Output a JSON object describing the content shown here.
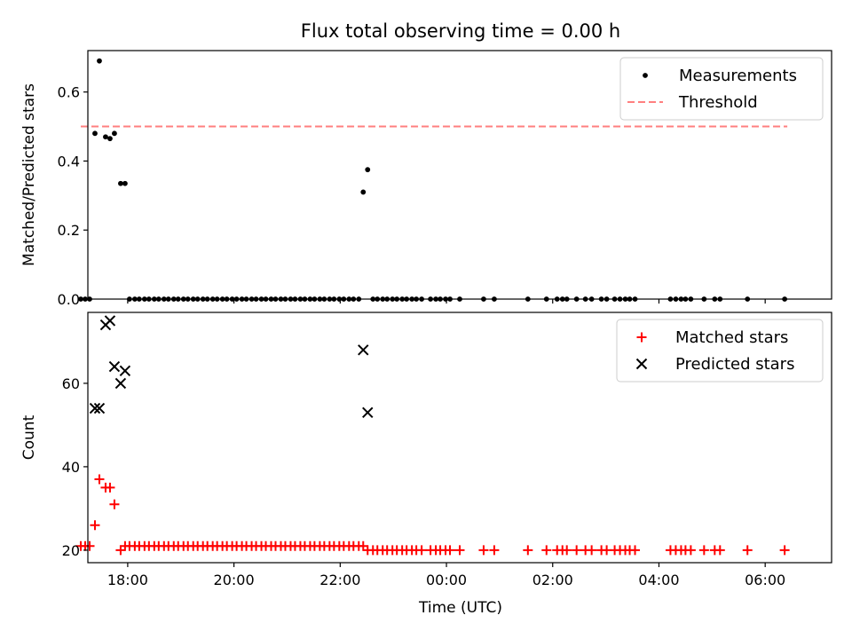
{
  "chart_data": {
    "type": "scatter",
    "title": "Flux total observing time = 0.00 h",
    "xlabel": "Time (UTC)",
    "x_ticks": [
      "18:00",
      "20:00",
      "22:00",
      "00:00",
      "02:00",
      "04:00",
      "06:00"
    ],
    "x_range": [
      "17:15",
      "07:15"
    ],
    "panels": [
      {
        "ylabel": "Matched/Predicted stars",
        "ylim": [
          0,
          0.72
        ],
        "y_ticks": [
          "0.0",
          "0.2",
          "0.4",
          "0.6"
        ],
        "legend": {
          "position": "upper right"
        },
        "series": [
          {
            "name": "Measurements",
            "kind": "points",
            "color": "#000000",
            "points": [
              [
                "17:07",
                0.0
              ],
              [
                "17:12",
                0.0
              ],
              [
                "17:17",
                0.0
              ],
              [
                "17:23",
                0.48
              ],
              [
                "17:28",
                0.69
              ],
              [
                "17:35",
                0.47
              ],
              [
                "17:40",
                0.465
              ],
              [
                "17:45",
                0.48
              ],
              [
                "17:52",
                0.335
              ],
              [
                "17:57",
                0.335
              ],
              [
                "18:02",
                0.0
              ],
              [
                "18:08",
                0.0
              ],
              [
                "18:13",
                0.0
              ],
              [
                "18:19",
                0.0
              ],
              [
                "18:24",
                0.0
              ],
              [
                "18:30",
                0.0
              ],
              [
                "18:35",
                0.0
              ],
              [
                "18:41",
                0.0
              ],
              [
                "18:46",
                0.0
              ],
              [
                "18:52",
                0.0
              ],
              [
                "18:57",
                0.0
              ],
              [
                "19:03",
                0.0
              ],
              [
                "19:08",
                0.0
              ],
              [
                "19:14",
                0.0
              ],
              [
                "19:19",
                0.0
              ],
              [
                "19:25",
                0.0
              ],
              [
                "19:30",
                0.0
              ],
              [
                "19:36",
                0.0
              ],
              [
                "19:41",
                0.0
              ],
              [
                "19:47",
                0.0
              ],
              [
                "19:52",
                0.0
              ],
              [
                "19:58",
                0.0
              ],
              [
                "20:03",
                0.0
              ],
              [
                "20:09",
                0.0
              ],
              [
                "20:14",
                0.0
              ],
              [
                "20:20",
                0.0
              ],
              [
                "20:25",
                0.0
              ],
              [
                "20:31",
                0.0
              ],
              [
                "20:36",
                0.0
              ],
              [
                "20:42",
                0.0
              ],
              [
                "20:47",
                0.0
              ],
              [
                "20:53",
                0.0
              ],
              [
                "20:58",
                0.0
              ],
              [
                "21:04",
                0.0
              ],
              [
                "21:09",
                0.0
              ],
              [
                "21:15",
                0.0
              ],
              [
                "21:20",
                0.0
              ],
              [
                "21:26",
                0.0
              ],
              [
                "21:31",
                0.0
              ],
              [
                "21:37",
                0.0
              ],
              [
                "21:42",
                0.0
              ],
              [
                "21:48",
                0.0
              ],
              [
                "21:53",
                0.0
              ],
              [
                "21:59",
                0.0
              ],
              [
                "22:04",
                0.0
              ],
              [
                "22:10",
                0.0
              ],
              [
                "22:15",
                0.0
              ],
              [
                "22:21",
                0.0
              ],
              [
                "22:26",
                0.31
              ],
              [
                "22:31",
                0.375
              ],
              [
                "22:37",
                0.0
              ],
              [
                "22:42",
                0.0
              ],
              [
                "22:48",
                0.0
              ],
              [
                "22:53",
                0.0
              ],
              [
                "22:59",
                0.0
              ],
              [
                "23:04",
                0.0
              ],
              [
                "23:10",
                0.0
              ],
              [
                "23:15",
                0.0
              ],
              [
                "23:21",
                0.0
              ],
              [
                "23:26",
                0.0
              ],
              [
                "23:32",
                0.0
              ],
              [
                "23:42",
                0.0
              ],
              [
                "23:48",
                0.0
              ],
              [
                "23:53",
                0.0
              ],
              [
                "23:59",
                0.0
              ],
              [
                "00:04",
                0.0
              ],
              [
                "00:15",
                0.0
              ],
              [
                "00:42",
                0.0
              ],
              [
                "00:54",
                0.0
              ],
              [
                "01:32",
                0.0
              ],
              [
                "01:53",
                0.0
              ],
              [
                "02:05",
                0.0
              ],
              [
                "02:11",
                0.0
              ],
              [
                "02:16",
                0.0
              ],
              [
                "02:27",
                0.0
              ],
              [
                "02:37",
                0.0
              ],
              [
                "02:44",
                0.0
              ],
              [
                "02:55",
                0.0
              ],
              [
                "03:01",
                0.0
              ],
              [
                "03:10",
                0.0
              ],
              [
                "03:16",
                0.0
              ],
              [
                "03:22",
                0.0
              ],
              [
                "03:27",
                0.0
              ],
              [
                "03:33",
                0.0
              ],
              [
                "04:13",
                0.0
              ],
              [
                "04:19",
                0.0
              ],
              [
                "04:25",
                0.0
              ],
              [
                "04:30",
                0.0
              ],
              [
                "04:36",
                0.0
              ],
              [
                "04:51",
                0.0
              ],
              [
                "05:03",
                0.0
              ],
              [
                "05:09",
                0.0
              ],
              [
                "05:40",
                0.0
              ],
              [
                "06:22",
                0.0
              ]
            ]
          },
          {
            "name": "Threshold",
            "kind": "dashed-line",
            "color": "#ff7f7f",
            "x": [
              "17:07",
              "06:25"
            ],
            "y": 0.5
          }
        ]
      },
      {
        "ylabel": "Count",
        "ylim": [
          17,
          77
        ],
        "y_ticks": [
          "20",
          "40",
          "60"
        ],
        "legend": {
          "position": "upper right"
        },
        "series": [
          {
            "name": "Matched stars",
            "kind": "plus",
            "color": "#ff0000",
            "points": [
              [
                "17:07",
                21
              ],
              [
                "17:12",
                21
              ],
              [
                "17:17",
                21
              ],
              [
                "17:23",
                26
              ],
              [
                "17:28",
                37
              ],
              [
                "17:35",
                35
              ],
              [
                "17:40",
                35
              ],
              [
                "17:45",
                31
              ],
              [
                "17:52",
                20
              ],
              [
                "17:57",
                21
              ],
              [
                "18:02",
                21
              ],
              [
                "18:08",
                21
              ],
              [
                "18:13",
                21
              ],
              [
                "18:19",
                21
              ],
              [
                "18:24",
                21
              ],
              [
                "18:30",
                21
              ],
              [
                "18:35",
                21
              ],
              [
                "18:41",
                21
              ],
              [
                "18:46",
                21
              ],
              [
                "18:52",
                21
              ],
              [
                "18:57",
                21
              ],
              [
                "19:03",
                21
              ],
              [
                "19:08",
                21
              ],
              [
                "19:14",
                21
              ],
              [
                "19:19",
                21
              ],
              [
                "19:25",
                21
              ],
              [
                "19:30",
                21
              ],
              [
                "19:36",
                21
              ],
              [
                "19:41",
                21
              ],
              [
                "19:47",
                21
              ],
              [
                "19:52",
                21
              ],
              [
                "19:58",
                21
              ],
              [
                "20:03",
                21
              ],
              [
                "20:09",
                21
              ],
              [
                "20:14",
                21
              ],
              [
                "20:20",
                21
              ],
              [
                "20:25",
                21
              ],
              [
                "20:31",
                21
              ],
              [
                "20:36",
                21
              ],
              [
                "20:42",
                21
              ],
              [
                "20:47",
                21
              ],
              [
                "20:53",
                21
              ],
              [
                "20:58",
                21
              ],
              [
                "21:04",
                21
              ],
              [
                "21:09",
                21
              ],
              [
                "21:15",
                21
              ],
              [
                "21:20",
                21
              ],
              [
                "21:26",
                21
              ],
              [
                "21:31",
                21
              ],
              [
                "21:37",
                21
              ],
              [
                "21:42",
                21
              ],
              [
                "21:48",
                21
              ],
              [
                "21:53",
                21
              ],
              [
                "21:59",
                21
              ],
              [
                "22:04",
                21
              ],
              [
                "22:10",
                21
              ],
              [
                "22:15",
                21
              ],
              [
                "22:21",
                21
              ],
              [
                "22:26",
                21
              ],
              [
                "22:31",
                20
              ],
              [
                "22:37",
                20
              ],
              [
                "22:42",
                20
              ],
              [
                "22:48",
                20
              ],
              [
                "22:53",
                20
              ],
              [
                "22:59",
                20
              ],
              [
                "23:04",
                20
              ],
              [
                "23:10",
                20
              ],
              [
                "23:15",
                20
              ],
              [
                "23:21",
                20
              ],
              [
                "23:26",
                20
              ],
              [
                "23:32",
                20
              ],
              [
                "23:42",
                20
              ],
              [
                "23:48",
                20
              ],
              [
                "23:53",
                20
              ],
              [
                "23:59",
                20
              ],
              [
                "00:04",
                20
              ],
              [
                "00:15",
                20
              ],
              [
                "00:42",
                20
              ],
              [
                "00:54",
                20
              ],
              [
                "01:32",
                20
              ],
              [
                "01:53",
                20
              ],
              [
                "02:05",
                20
              ],
              [
                "02:11",
                20
              ],
              [
                "02:16",
                20
              ],
              [
                "02:27",
                20
              ],
              [
                "02:37",
                20
              ],
              [
                "02:44",
                20
              ],
              [
                "02:55",
                20
              ],
              [
                "03:01",
                20
              ],
              [
                "03:10",
                20
              ],
              [
                "03:16",
                20
              ],
              [
                "03:22",
                20
              ],
              [
                "03:27",
                20
              ],
              [
                "03:33",
                20
              ],
              [
                "04:13",
                20
              ],
              [
                "04:19",
                20
              ],
              [
                "04:25",
                20
              ],
              [
                "04:30",
                20
              ],
              [
                "04:36",
                20
              ],
              [
                "04:51",
                20
              ],
              [
                "05:03",
                20
              ],
              [
                "05:09",
                20
              ],
              [
                "05:40",
                20
              ],
              [
                "06:22",
                20
              ]
            ]
          },
          {
            "name": "Predicted stars",
            "kind": "x",
            "color": "#000000",
            "points": [
              [
                "17:23",
                54
              ],
              [
                "17:28",
                54
              ],
              [
                "17:35",
                74
              ],
              [
                "17:40",
                75
              ],
              [
                "17:45",
                64
              ],
              [
                "17:52",
                60
              ],
              [
                "17:57",
                63
              ],
              [
                "22:26",
                68
              ],
              [
                "22:31",
                53
              ]
            ]
          }
        ]
      }
    ]
  }
}
